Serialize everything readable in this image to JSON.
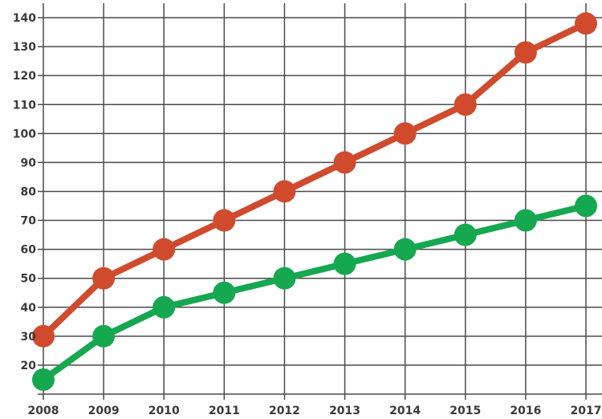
{
  "chart_data": {
    "type": "line",
    "title": "",
    "xlabel": "",
    "ylabel": "",
    "x": [
      2008,
      2009,
      2010,
      2011,
      2012,
      2013,
      2014,
      2015,
      2016,
      2017
    ],
    "series": [
      {
        "name": "red-line",
        "color": "#d04b2e",
        "values": [
          30,
          50,
          60,
          70,
          80,
          90,
          100,
          110,
          128,
          138
        ]
      },
      {
        "name": "green-line",
        "color": "#15a850",
        "values": [
          15,
          30,
          40,
          45,
          50,
          55,
          60,
          65,
          70,
          75
        ]
      }
    ],
    "yticks": [
      20,
      30,
      40,
      50,
      60,
      70,
      80,
      90,
      100,
      110,
      120,
      130,
      140
    ],
    "ylim": [
      10,
      145
    ],
    "grid": true,
    "legend": false,
    "marker_radius": 14,
    "line_width": 8,
    "grid_color": "#4a4a4a",
    "label_color": "#3a3a3a",
    "background": "#ffffff"
  }
}
